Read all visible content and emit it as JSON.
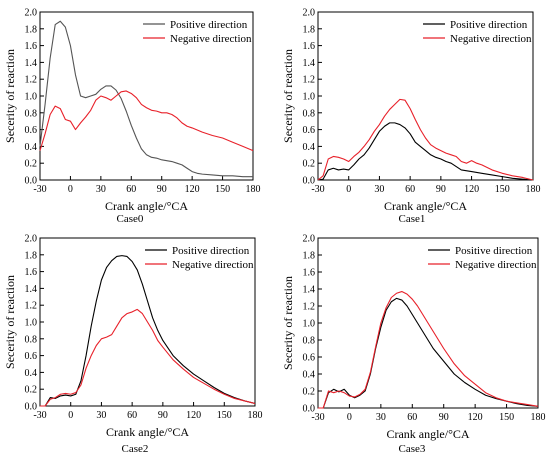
{
  "chart_data": [
    {
      "type": "line",
      "caption": "Case0",
      "xlabel": "Crank angle/°CA",
      "ylabel": "Secerity of reaction",
      "xlim": [
        -30,
        180
      ],
      "ylim": [
        0,
        2.0
      ],
      "xticks": [
        -30,
        0,
        30,
        60,
        90,
        120,
        150,
        180
      ],
      "yticks": [
        0.0,
        0.2,
        0.4,
        0.6,
        0.8,
        1.0,
        1.2,
        1.4,
        1.6,
        1.8,
        2.0
      ],
      "legend_position": "top-right",
      "series": [
        {
          "name": "Positive direction",
          "color": "#555555",
          "x": [
            -30,
            -25,
            -20,
            -15,
            -10,
            -5,
            0,
            5,
            10,
            15,
            20,
            25,
            30,
            35,
            40,
            45,
            50,
            55,
            60,
            65,
            70,
            75,
            80,
            85,
            90,
            95,
            100,
            105,
            110,
            115,
            120,
            125,
            130,
            140,
            150,
            160,
            170,
            180
          ],
          "y": [
            0.4,
            0.9,
            1.45,
            1.85,
            1.89,
            1.82,
            1.6,
            1.25,
            1.0,
            0.98,
            1.0,
            1.02,
            1.08,
            1.12,
            1.12,
            1.07,
            0.97,
            0.82,
            0.65,
            0.5,
            0.37,
            0.3,
            0.27,
            0.26,
            0.24,
            0.23,
            0.22,
            0.2,
            0.18,
            0.14,
            0.1,
            0.08,
            0.07,
            0.06,
            0.05,
            0.05,
            0.04,
            0.04
          ]
        },
        {
          "name": "Negative direction",
          "color": "#e8212a",
          "x": [
            -30,
            -25,
            -20,
            -15,
            -10,
            -5,
            0,
            5,
            10,
            15,
            20,
            25,
            30,
            35,
            40,
            45,
            50,
            55,
            60,
            65,
            70,
            75,
            80,
            85,
            90,
            95,
            100,
            105,
            110,
            115,
            120,
            130,
            140,
            150,
            160,
            170,
            180
          ],
          "y": [
            0.35,
            0.55,
            0.78,
            0.88,
            0.85,
            0.72,
            0.7,
            0.6,
            0.68,
            0.75,
            0.83,
            0.95,
            1.0,
            0.98,
            0.95,
            1.0,
            1.05,
            1.06,
            1.03,
            0.98,
            0.9,
            0.86,
            0.83,
            0.82,
            0.8,
            0.8,
            0.78,
            0.74,
            0.68,
            0.64,
            0.62,
            0.57,
            0.53,
            0.5,
            0.45,
            0.4,
            0.35
          ]
        }
      ]
    },
    {
      "type": "line",
      "caption": "Case1",
      "xlabel": "Crank angle/°CA",
      "ylabel": "Secerity of reaction",
      "xlim": [
        -30,
        180
      ],
      "ylim": [
        0,
        2.0
      ],
      "xticks": [
        -30,
        0,
        30,
        60,
        90,
        120,
        150,
        180
      ],
      "yticks": [
        0.0,
        0.2,
        0.4,
        0.6,
        0.8,
        1.0,
        1.2,
        1.4,
        1.6,
        1.8,
        2.0
      ],
      "legend_position": "top-right",
      "series": [
        {
          "name": "Positive direction",
          "color": "#000000",
          "x": [
            -30,
            -25,
            -20,
            -15,
            -10,
            -5,
            0,
            5,
            10,
            15,
            20,
            25,
            30,
            35,
            40,
            45,
            50,
            55,
            60,
            65,
            70,
            75,
            80,
            85,
            90,
            95,
            100,
            105,
            110,
            120,
            130,
            140,
            150,
            160,
            170,
            180
          ],
          "y": [
            0.0,
            0.01,
            0.12,
            0.14,
            0.12,
            0.13,
            0.12,
            0.18,
            0.25,
            0.3,
            0.38,
            0.48,
            0.58,
            0.64,
            0.68,
            0.68,
            0.66,
            0.62,
            0.55,
            0.45,
            0.4,
            0.35,
            0.3,
            0.27,
            0.25,
            0.22,
            0.2,
            0.16,
            0.12,
            0.1,
            0.08,
            0.06,
            0.04,
            0.02,
            0.01,
            0.0
          ]
        },
        {
          "name": "Negative direction",
          "color": "#e8212a",
          "x": [
            -30,
            -25,
            -20,
            -15,
            -10,
            -5,
            0,
            5,
            10,
            15,
            20,
            25,
            30,
            35,
            40,
            45,
            50,
            55,
            60,
            65,
            70,
            75,
            80,
            85,
            90,
            95,
            100,
            105,
            110,
            115,
            120,
            125,
            130,
            140,
            150,
            160,
            170,
            180
          ],
          "y": [
            0.0,
            0.05,
            0.25,
            0.28,
            0.27,
            0.25,
            0.22,
            0.28,
            0.33,
            0.4,
            0.48,
            0.58,
            0.66,
            0.76,
            0.84,
            0.9,
            0.96,
            0.95,
            0.85,
            0.72,
            0.6,
            0.5,
            0.42,
            0.38,
            0.35,
            0.32,
            0.3,
            0.28,
            0.22,
            0.2,
            0.23,
            0.2,
            0.18,
            0.12,
            0.08,
            0.05,
            0.03,
            0.0
          ]
        }
      ]
    },
    {
      "type": "line",
      "caption": "Case2",
      "xlabel": "Crank angle/°CA",
      "ylabel": "Secerity of reaction",
      "xlim": [
        -30,
        180
      ],
      "ylim": [
        0,
        2.0
      ],
      "xticks": [
        -30,
        0,
        30,
        60,
        90,
        120,
        150,
        180
      ],
      "yticks": [
        0.0,
        0.2,
        0.4,
        0.6,
        0.8,
        1.0,
        1.2,
        1.4,
        1.6,
        1.8,
        2.0
      ],
      "legend_position": "top-right",
      "series": [
        {
          "name": "Positive direction",
          "color": "#000000",
          "x": [
            -30,
            -25,
            -20,
            -15,
            -10,
            -5,
            0,
            5,
            10,
            15,
            20,
            25,
            30,
            35,
            40,
            45,
            50,
            55,
            60,
            65,
            70,
            75,
            80,
            85,
            90,
            100,
            110,
            120,
            130,
            140,
            150,
            160,
            170,
            180
          ],
          "y": [
            0.0,
            0.0,
            0.1,
            0.09,
            0.12,
            0.13,
            0.12,
            0.14,
            0.3,
            0.6,
            0.95,
            1.25,
            1.5,
            1.65,
            1.73,
            1.78,
            1.79,
            1.78,
            1.72,
            1.62,
            1.45,
            1.25,
            1.05,
            0.9,
            0.78,
            0.6,
            0.48,
            0.38,
            0.3,
            0.22,
            0.15,
            0.1,
            0.06,
            0.03
          ]
        },
        {
          "name": "Negative direction",
          "color": "#e8212a",
          "x": [
            -30,
            -25,
            -20,
            -15,
            -10,
            -5,
            0,
            5,
            10,
            15,
            20,
            25,
            30,
            35,
            40,
            45,
            50,
            55,
            60,
            65,
            70,
            75,
            80,
            85,
            90,
            100,
            110,
            120,
            130,
            140,
            150,
            160,
            170,
            180
          ],
          "y": [
            0.0,
            0.0,
            0.08,
            0.1,
            0.14,
            0.15,
            0.14,
            0.16,
            0.25,
            0.45,
            0.6,
            0.72,
            0.8,
            0.82,
            0.85,
            0.95,
            1.05,
            1.1,
            1.12,
            1.15,
            1.1,
            1.0,
            0.9,
            0.78,
            0.7,
            0.55,
            0.44,
            0.34,
            0.27,
            0.2,
            0.14,
            0.09,
            0.06,
            0.03
          ]
        }
      ]
    },
    {
      "type": "line",
      "caption": "Case3",
      "xlabel": "Crank angle/°CA",
      "ylabel": "Secerity of reaction",
      "xlim": [
        -30,
        180
      ],
      "ylim": [
        0,
        2.0
      ],
      "xticks": [
        -30,
        0,
        30,
        60,
        90,
        120,
        150,
        180
      ],
      "yticks": [
        0.0,
        0.2,
        0.4,
        0.6,
        0.8,
        1.0,
        1.2,
        1.4,
        1.6,
        1.8,
        2.0
      ],
      "legend_position": "top-right",
      "series": [
        {
          "name": "Positive direction",
          "color": "#000000",
          "x": [
            -30,
            -25,
            -20,
            -15,
            -10,
            -5,
            0,
            5,
            10,
            15,
            20,
            25,
            30,
            35,
            40,
            45,
            50,
            55,
            60,
            65,
            70,
            75,
            80,
            90,
            100,
            110,
            120,
            130,
            140,
            150,
            160,
            170,
            180
          ],
          "y": [
            0.0,
            0.0,
            0.18,
            0.22,
            0.19,
            0.22,
            0.15,
            0.12,
            0.15,
            0.2,
            0.4,
            0.7,
            0.95,
            1.15,
            1.25,
            1.29,
            1.27,
            1.2,
            1.1,
            1.0,
            0.9,
            0.8,
            0.7,
            0.55,
            0.4,
            0.3,
            0.22,
            0.15,
            0.11,
            0.08,
            0.05,
            0.03,
            0.02
          ]
        },
        {
          "name": "Negative direction",
          "color": "#e8212a",
          "x": [
            -30,
            -25,
            -20,
            -15,
            -10,
            -5,
            0,
            5,
            10,
            15,
            20,
            25,
            30,
            35,
            40,
            45,
            50,
            55,
            60,
            65,
            70,
            75,
            80,
            90,
            100,
            110,
            120,
            130,
            140,
            150,
            160,
            170,
            180
          ],
          "y": [
            0.0,
            0.0,
            0.2,
            0.18,
            0.2,
            0.18,
            0.14,
            0.13,
            0.16,
            0.22,
            0.42,
            0.72,
            1.0,
            1.18,
            1.3,
            1.35,
            1.37,
            1.34,
            1.28,
            1.2,
            1.1,
            1.0,
            0.9,
            0.7,
            0.52,
            0.38,
            0.28,
            0.18,
            0.12,
            0.08,
            0.06,
            0.04,
            0.02
          ]
        }
      ]
    }
  ]
}
